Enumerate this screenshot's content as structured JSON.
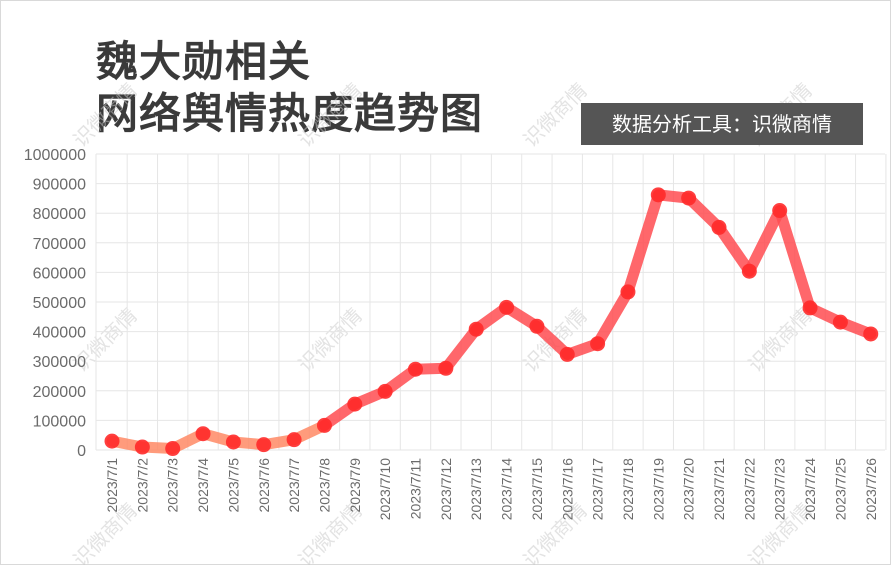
{
  "header": {
    "title_line1": "魏大勋相关",
    "title_line2": "网络舆情热度趋势图",
    "tool_badge": "数据分析工具：识微商情"
  },
  "watermark": "识微商情",
  "colors": {
    "line": "#ff4d52",
    "line_low": "#ff8a66",
    "point": "#ff2a2a",
    "grid": "#e6e6e6",
    "axis_text": "#6b6b6b",
    "badge_bg": "#555555"
  },
  "chart_data": {
    "type": "line",
    "title": "魏大勋相关网络舆情热度趋势图",
    "xlabel": "",
    "ylabel": "",
    "ylim": [
      0,
      1000000
    ],
    "yticks": [
      0,
      100000,
      200000,
      300000,
      400000,
      500000,
      600000,
      700000,
      800000,
      900000,
      1000000
    ],
    "grid": true,
    "legend": "none",
    "categories": [
      "2023/7/1",
      "2023/7/2",
      "2023/7/3",
      "2023/7/4",
      "2023/7/5",
      "2023/7/6",
      "2023/7/7",
      "2023/7/8",
      "2023/7/9",
      "2023/7/10",
      "2023/7/11",
      "2023/7/12",
      "2023/7/13",
      "2023/7/14",
      "2023/7/15",
      "2023/7/16",
      "2023/7/17",
      "2023/7/18",
      "2023/7/19",
      "2023/7/20",
      "2023/7/21",
      "2023/7/22",
      "2023/7/23",
      "2023/7/24",
      "2023/7/25",
      "2023/7/26"
    ],
    "series": [
      {
        "values": [
          30000,
          10000,
          5000,
          55000,
          27000,
          18000,
          35000,
          83000,
          155000,
          198000,
          273000,
          276000,
          408000,
          482000,
          418000,
          323000,
          359000,
          534000,
          862000,
          851000,
          752000,
          604000,
          809000,
          480000,
          432000,
          392000
        ]
      }
    ]
  }
}
